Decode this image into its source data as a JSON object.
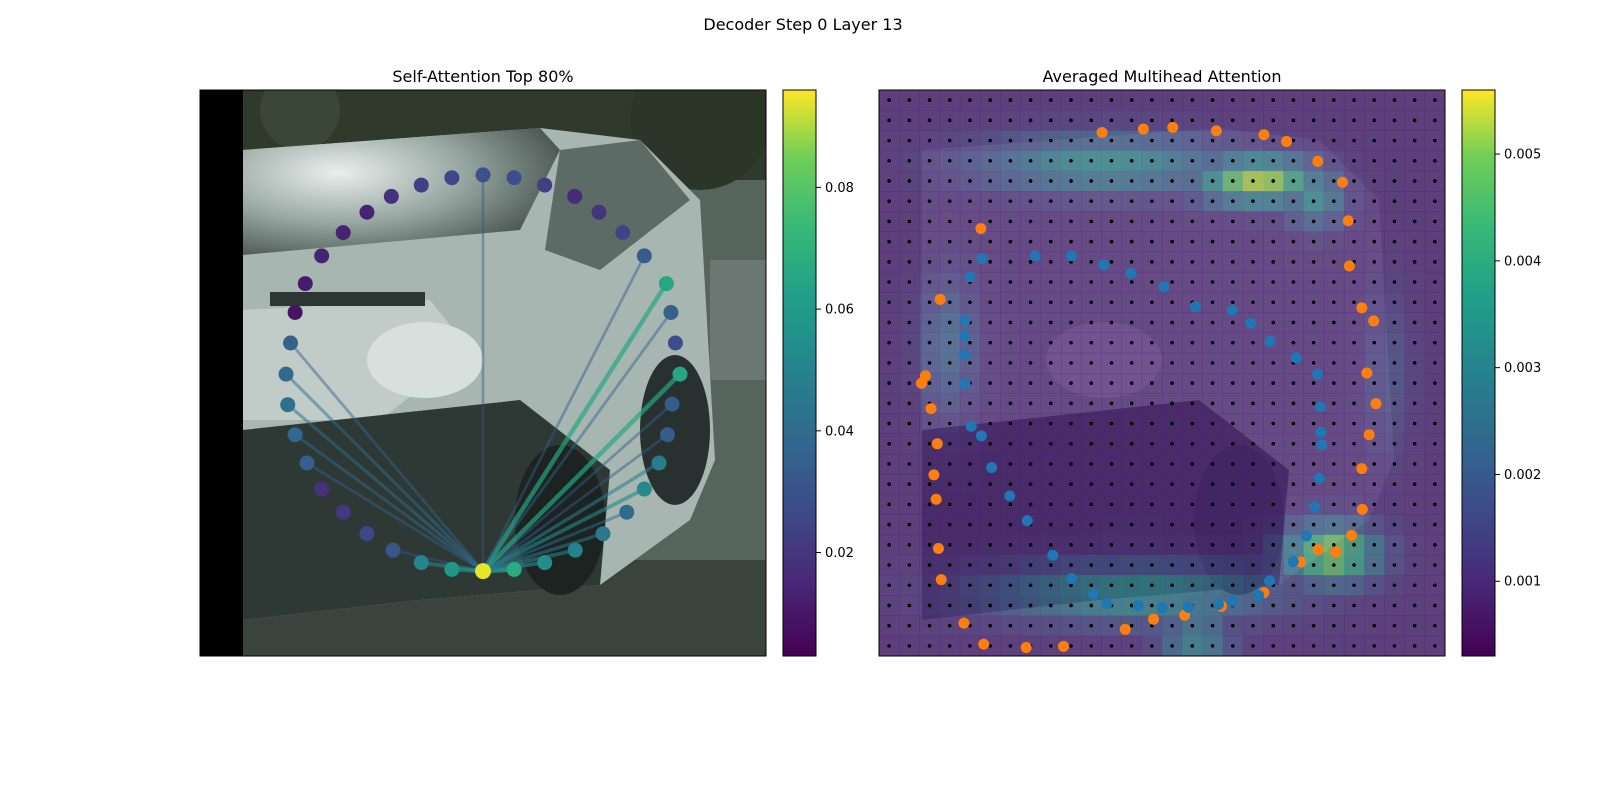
{
  "figure": {
    "title": "Decoder Step 0 Layer 13"
  },
  "chart_data": [
    {
      "type": "scatter",
      "title": "Self-Attention Top 80%",
      "colormap": "viridis",
      "colorbar": {
        "range": [
          0.003,
          0.096
        ],
        "ticks": [
          "0.02",
          "0.04",
          "0.06",
          "0.08"
        ]
      },
      "query_index": 0,
      "points": [
        {
          "x": 0.5,
          "y": 0.85,
          "v": 0.093
        },
        {
          "x": 0.555,
          "y": 0.847,
          "v": 0.06
        },
        {
          "x": 0.609,
          "y": 0.835,
          "v": 0.048
        },
        {
          "x": 0.663,
          "y": 0.813,
          "v": 0.044
        },
        {
          "x": 0.712,
          "y": 0.784,
          "v": 0.04
        },
        {
          "x": 0.754,
          "y": 0.746,
          "v": 0.035
        },
        {
          "x": 0.785,
          "y": 0.705,
          "v": 0.047
        },
        {
          "x": 0.811,
          "y": 0.659,
          "v": 0.042
        },
        {
          "x": 0.826,
          "y": 0.609,
          "v": 0.03
        },
        {
          "x": 0.834,
          "y": 0.555,
          "v": 0.03
        },
        {
          "x": 0.848,
          "y": 0.502,
          "v": 0.058
        },
        {
          "x": 0.84,
          "y": 0.447,
          "v": 0.025
        },
        {
          "x": 0.832,
          "y": 0.393,
          "v": 0.032
        },
        {
          "x": 0.824,
          "y": 0.342,
          "v": 0.058
        },
        {
          "x": 0.785,
          "y": 0.293,
          "v": 0.03
        },
        {
          "x": 0.747,
          "y": 0.252,
          "v": 0.022
        },
        {
          "x": 0.705,
          "y": 0.216,
          "v": 0.017
        },
        {
          "x": 0.662,
          "y": 0.188,
          "v": 0.014
        },
        {
          "x": 0.609,
          "y": 0.168,
          "v": 0.021
        },
        {
          "x": 0.555,
          "y": 0.155,
          "v": 0.026
        },
        {
          "x": 0.5,
          "y": 0.15,
          "v": 0.027
        },
        {
          "x": 0.445,
          "y": 0.155,
          "v": 0.023
        },
        {
          "x": 0.391,
          "y": 0.168,
          "v": 0.021
        },
        {
          "x": 0.338,
          "y": 0.188,
          "v": 0.016
        },
        {
          "x": 0.295,
          "y": 0.216,
          "v": 0.012
        },
        {
          "x": 0.253,
          "y": 0.252,
          "v": 0.012
        },
        {
          "x": 0.215,
          "y": 0.293,
          "v": 0.012
        },
        {
          "x": 0.186,
          "y": 0.342,
          "v": 0.01
        },
        {
          "x": 0.168,
          "y": 0.393,
          "v": 0.008
        },
        {
          "x": 0.16,
          "y": 0.447,
          "v": 0.032
        },
        {
          "x": 0.152,
          "y": 0.502,
          "v": 0.035
        },
        {
          "x": 0.155,
          "y": 0.556,
          "v": 0.037
        },
        {
          "x": 0.168,
          "y": 0.609,
          "v": 0.034
        },
        {
          "x": 0.189,
          "y": 0.659,
          "v": 0.031
        },
        {
          "x": 0.215,
          "y": 0.705,
          "v": 0.016
        },
        {
          "x": 0.253,
          "y": 0.746,
          "v": 0.018
        },
        {
          "x": 0.295,
          "y": 0.784,
          "v": 0.023
        },
        {
          "x": 0.341,
          "y": 0.813,
          "v": 0.028
        },
        {
          "x": 0.391,
          "y": 0.835,
          "v": 0.045
        },
        {
          "x": 0.445,
          "y": 0.847,
          "v": 0.052
        }
      ]
    },
    {
      "type": "heatmap",
      "title": "Averaged Multihead Attention",
      "colormap": "viridis",
      "colorbar": {
        "range": [
          0.0003,
          0.0056
        ],
        "ticks": [
          "0.001",
          "0.002",
          "0.003",
          "0.004",
          "0.005"
        ]
      },
      "grid": [
        28,
        28
      ],
      "hotspots": [
        {
          "cx": 0.67,
          "cy": 0.16,
          "sx": 0.1,
          "sy": 0.04,
          "v": 0.005
        },
        {
          "cx": 0.4,
          "cy": 0.13,
          "sx": 0.22,
          "sy": 0.05,
          "v": 0.003
        },
        {
          "cx": 0.77,
          "cy": 0.19,
          "sx": 0.05,
          "sy": 0.05,
          "v": 0.003
        },
        {
          "cx": 0.8,
          "cy": 0.82,
          "sx": 0.08,
          "sy": 0.05,
          "v": 0.0048
        },
        {
          "cx": 0.45,
          "cy": 0.89,
          "sx": 0.25,
          "sy": 0.05,
          "v": 0.0032
        },
        {
          "cx": 0.56,
          "cy": 0.97,
          "sx": 0.06,
          "sy": 0.04,
          "v": 0.003
        },
        {
          "cx": 0.12,
          "cy": 0.45,
          "sx": 0.05,
          "sy": 0.12,
          "v": 0.002
        },
        {
          "cx": 0.9,
          "cy": 0.5,
          "sx": 0.04,
          "sy": 0.15,
          "v": 0.0015
        }
      ],
      "background_value": 0.0008,
      "orange_points": [
        [
          0.18,
          0.245
        ],
        [
          0.108,
          0.37
        ],
        [
          0.082,
          0.505
        ],
        [
          0.092,
          0.563
        ],
        [
          0.075,
          0.518
        ],
        [
          0.103,
          0.625
        ],
        [
          0.097,
          0.68
        ],
        [
          0.101,
          0.723
        ],
        [
          0.105,
          0.81
        ],
        [
          0.11,
          0.865
        ],
        [
          0.15,
          0.942
        ],
        [
          0.185,
          0.979
        ],
        [
          0.26,
          0.985
        ],
        [
          0.326,
          0.983
        ],
        [
          0.435,
          0.953
        ],
        [
          0.485,
          0.935
        ],
        [
          0.54,
          0.928
        ],
        [
          0.605,
          0.912
        ],
        [
          0.68,
          0.888
        ],
        [
          0.745,
          0.834
        ],
        [
          0.776,
          0.812
        ],
        [
          0.807,
          0.816
        ],
        [
          0.835,
          0.787
        ],
        [
          0.854,
          0.741
        ],
        [
          0.853,
          0.669
        ],
        [
          0.866,
          0.609
        ],
        [
          0.878,
          0.554
        ],
        [
          0.862,
          0.5
        ],
        [
          0.874,
          0.408
        ],
        [
          0.853,
          0.385
        ],
        [
          0.831,
          0.311
        ],
        [
          0.829,
          0.231
        ],
        [
          0.819,
          0.163
        ],
        [
          0.775,
          0.126
        ],
        [
          0.72,
          0.091
        ],
        [
          0.68,
          0.079
        ],
        [
          0.596,
          0.072
        ],
        [
          0.519,
          0.066
        ],
        [
          0.467,
          0.069
        ],
        [
          0.394,
          0.075
        ]
      ],
      "blue_points": [
        [
          0.276,
          0.293
        ],
        [
          0.34,
          0.293
        ],
        [
          0.397,
          0.309
        ],
        [
          0.445,
          0.324
        ],
        [
          0.503,
          0.348
        ],
        [
          0.559,
          0.383
        ],
        [
          0.624,
          0.389
        ],
        [
          0.657,
          0.412
        ],
        [
          0.691,
          0.444
        ],
        [
          0.737,
          0.473
        ],
        [
          0.775,
          0.502
        ],
        [
          0.78,
          0.56
        ],
        [
          0.781,
          0.605
        ],
        [
          0.782,
          0.627
        ],
        [
          0.778,
          0.686
        ],
        [
          0.77,
          0.737
        ],
        [
          0.755,
          0.788
        ],
        [
          0.732,
          0.833
        ],
        [
          0.69,
          0.867
        ],
        [
          0.671,
          0.893
        ],
        [
          0.625,
          0.903
        ],
        [
          0.6,
          0.909
        ],
        [
          0.547,
          0.914
        ],
        [
          0.5,
          0.915
        ],
        [
          0.458,
          0.911
        ],
        [
          0.403,
          0.907
        ],
        [
          0.379,
          0.89
        ],
        [
          0.34,
          0.863
        ],
        [
          0.307,
          0.822
        ],
        [
          0.262,
          0.761
        ],
        [
          0.231,
          0.717
        ],
        [
          0.199,
          0.667
        ],
        [
          0.181,
          0.611
        ],
        [
          0.163,
          0.594
        ],
        [
          0.152,
          0.519
        ],
        [
          0.152,
          0.468
        ],
        [
          0.152,
          0.434
        ],
        [
          0.152,
          0.407
        ],
        [
          0.161,
          0.33
        ],
        [
          0.182,
          0.298
        ]
      ]
    }
  ]
}
